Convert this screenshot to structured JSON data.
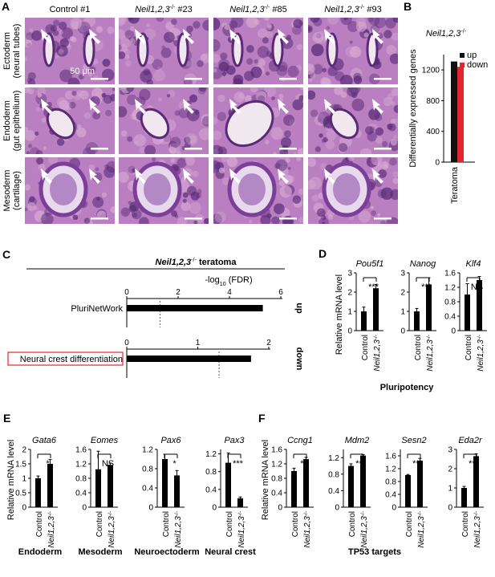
{
  "panelA": {
    "letter": "A",
    "columns": [
      "Control #1",
      "Neil1,2,3",
      "Neil1,2,3",
      "Neil1,2,3"
    ],
    "column_sup": [
      "",
      "-/-",
      "-/-",
      "-/-"
    ],
    "column_suffix": [
      "",
      " #23",
      " #85",
      " #93"
    ],
    "rows": [
      {
        "name": "Ectoderm",
        "sub": "(neural tubes)"
      },
      {
        "name": "Endoderm",
        "sub": "(gut epithelium)"
      },
      {
        "name": "Mesoderm",
        "sub": "(cartilage)"
      }
    ],
    "scale_label": "50 μm",
    "colors": {
      "tissue": "#b97fc0",
      "dark": "#5a2a78",
      "pale": "#f1e7ee"
    }
  },
  "chart_data": [
    {
      "panel": "B",
      "type": "bar",
      "title": "Neil1,2,3",
      "title_sup": "-/-",
      "categories": [
        "Teratoma"
      ],
      "series": [
        {
          "name": "up",
          "values": [
            1310
          ],
          "color": "#111111"
        },
        {
          "name": "down",
          "values": [
            1240
          ],
          "color": "#e3262c"
        }
      ],
      "ylabel": "Differentially expressed genes",
      "ylim": [
        0,
        1400
      ],
      "yticks": [
        "0",
        "400",
        "800",
        "1200"
      ],
      "legend": "top-right"
    },
    {
      "panel": "C",
      "type": "bar",
      "orientation": "horizontal",
      "title": "Neil1,2,3",
      "title_sup": "-/-",
      "title_suffix": " teratoma",
      "xlabel": "-log",
      "xlabel_sub": "10",
      "xlabel_suffix": " (FDR)",
      "groups": [
        {
          "label": "up",
          "term": "PluriNetWork",
          "value": 5.3,
          "xlim": [
            0,
            6
          ],
          "xticks": [
            "0",
            "2",
            "4",
            "6"
          ],
          "threshold": 1.3
        },
        {
          "label": "down",
          "term": "Neural crest differentiation",
          "value": 1.75,
          "xlim": [
            0,
            2
          ],
          "xticks": [
            "0",
            "1",
            "2"
          ],
          "threshold": 1.3,
          "boxed": true,
          "box_color": "#e3262c"
        }
      ]
    },
    {
      "panel": "D",
      "type": "bar",
      "group_label": "Pluripotency",
      "ylabel": "Relative mRNA level",
      "categories": [
        "Control",
        "Neil1,2,3"
      ],
      "category_sup": [
        "",
        "-/-"
      ],
      "genes": [
        {
          "gene": "Pou5f1",
          "values": [
            1.0,
            2.2
          ],
          "errors": [
            0.22,
            0.2
          ],
          "ylim": [
            0,
            3
          ],
          "yticks": [
            "0",
            "1",
            "2",
            "3"
          ],
          "sig": "***"
        },
        {
          "gene": "Nanog",
          "values": [
            1.0,
            2.4
          ],
          "errors": [
            0.15,
            0.35
          ],
          "ylim": [
            0,
            3
          ],
          "yticks": [
            "0",
            "1",
            "2",
            "3"
          ],
          "sig": "***"
        },
        {
          "gene": "Klf4",
          "values": [
            1.0,
            1.4
          ],
          "errors": [
            0.3,
            0.1
          ],
          "ylim": [
            0,
            1.6
          ],
          "yticks": [
            "0",
            "0.4",
            "0.8",
            "1.2",
            "1.6"
          ],
          "sig": "NS"
        }
      ]
    },
    {
      "panel": "E",
      "type": "bar",
      "ylabel": "Relative mRNA level",
      "categories": [
        "Control",
        "Neil1,2,3"
      ],
      "category_sup": [
        "",
        "-/-"
      ],
      "genes": [
        {
          "gene": "Gata6",
          "group": "Endoderm",
          "values": [
            1.0,
            1.5
          ],
          "errors": [
            0.08,
            0.15
          ],
          "ylim": [
            0,
            2
          ],
          "yticks": [
            "0",
            "0.5",
            "1",
            "1.5",
            "2"
          ],
          "sig": "*"
        },
        {
          "gene": "Eomes",
          "group": "Mesoderm",
          "values": [
            1.05,
            1.17
          ],
          "errors": [
            0.5,
            0.05
          ],
          "ylim": [
            0,
            1.6
          ],
          "yticks": [
            "0",
            "0.4",
            "0.8",
            "1.2",
            "1.6"
          ],
          "sig": "NS"
        },
        {
          "gene": "Pax6",
          "group": "Neuroectoderm",
          "values": [
            1.0,
            0.66
          ],
          "errors": [
            0.1,
            0.1
          ],
          "ylim": [
            0,
            1.2
          ],
          "yticks": [
            "0",
            "0.4",
            "0.8",
            "1.2"
          ],
          "sig": "*"
        },
        {
          "gene": "Pax3",
          "group": "Neural crest",
          "values": [
            1.0,
            0.2
          ],
          "errors": [
            0.22,
            0.03
          ],
          "ylim": [
            0,
            1.3
          ],
          "yticks": [
            "0",
            "0.4",
            "0.8",
            "1.2"
          ],
          "sig": "***"
        }
      ]
    },
    {
      "panel": "F",
      "type": "bar",
      "group_label": "TP53 targets",
      "ylabel": "Relative mRNA level",
      "categories": [
        "Control",
        "Neil1,2,3"
      ],
      "category_sup": [
        "",
        "-/-"
      ],
      "genes": [
        {
          "gene": "Ccng1",
          "values": [
            1.0,
            1.33
          ],
          "errors": [
            0.08,
            0.05
          ],
          "ylim": [
            0,
            1.6
          ],
          "yticks": [
            "0",
            "0.4",
            "0.8",
            "1.2",
            "1.6"
          ],
          "sig": "**"
        },
        {
          "gene": "Mdm2",
          "values": [
            1.0,
            1.25
          ],
          "errors": [
            0.05,
            0.02
          ],
          "ylim": [
            0,
            1.4
          ],
          "yticks": [
            "0",
            "0.4",
            "0.8",
            "1.2"
          ],
          "sig": "***"
        },
        {
          "gene": "Sesn2",
          "values": [
            1.0,
            1.45
          ],
          "errors": [
            0.02,
            0.07
          ],
          "ylim": [
            0,
            1.8
          ],
          "yticks": [
            "0",
            "0.4",
            "0.8",
            "1.2",
            "1.6"
          ],
          "sig": "***"
        },
        {
          "gene": "Eda2r",
          "values": [
            1.0,
            2.65
          ],
          "errors": [
            0.08,
            0.12
          ],
          "ylim": [
            0,
            3
          ],
          "yticks": [
            "0",
            "1",
            "2",
            "3"
          ],
          "sig": "***"
        }
      ]
    }
  ]
}
